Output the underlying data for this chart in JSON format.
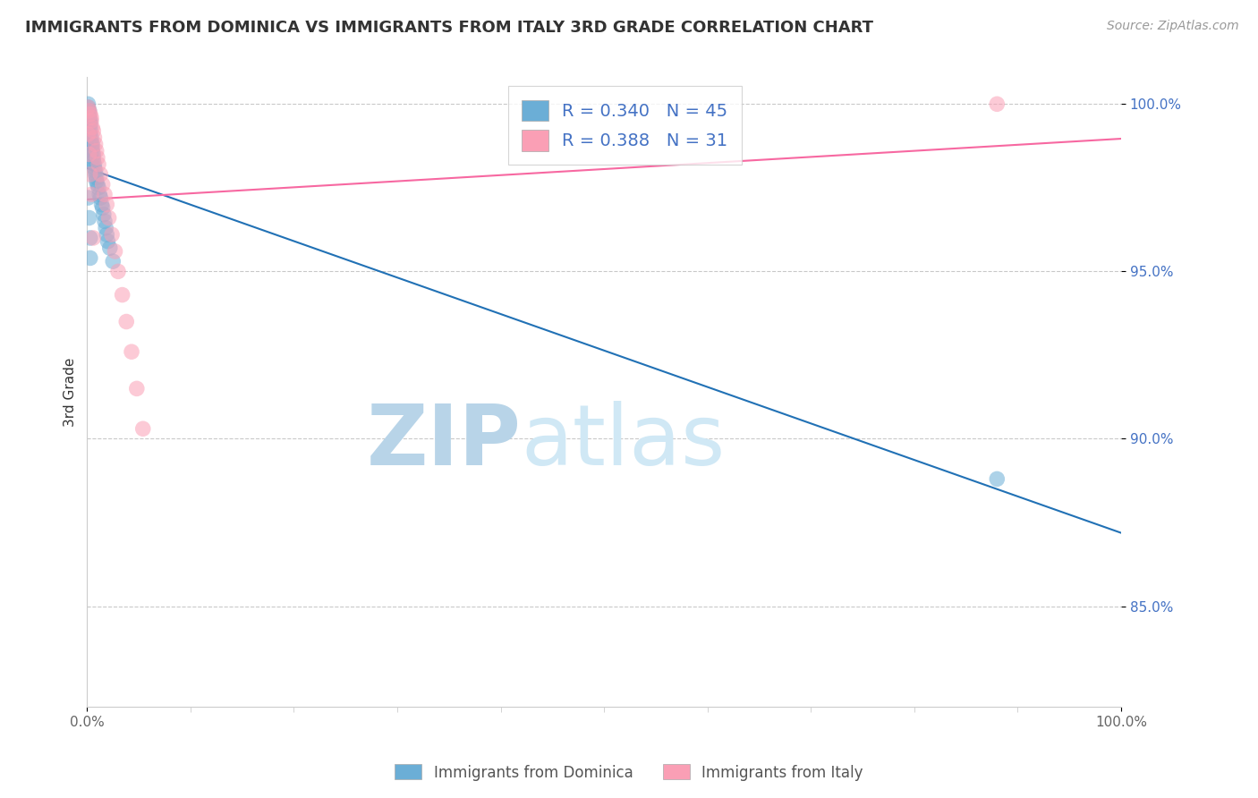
{
  "title": "IMMIGRANTS FROM DOMINICA VS IMMIGRANTS FROM ITALY 3RD GRADE CORRELATION CHART",
  "source": "Source: ZipAtlas.com",
  "ylabel": "3rd Grade",
  "dominica_color": "#6baed6",
  "italy_color": "#fa9fb5",
  "dominica_line_color": "#2171b5",
  "italy_line_color": "#f768a1",
  "dominica_R": 0.34,
  "dominica_N": 45,
  "italy_R": 0.388,
  "italy_N": 31,
  "xlim": [
    0.0,
    1.0
  ],
  "ylim": [
    0.82,
    1.008
  ],
  "yticks": [
    0.85,
    0.9,
    0.95,
    1.0
  ],
  "yticklabels": [
    "85.0%",
    "90.0%",
    "95.0%",
    "100.0%"
  ],
  "dominica_x": [
    0.001,
    0.001,
    0.001,
    0.002,
    0.002,
    0.002,
    0.002,
    0.003,
    0.003,
    0.003,
    0.003,
    0.003,
    0.004,
    0.004,
    0.004,
    0.005,
    0.005,
    0.005,
    0.006,
    0.006,
    0.006,
    0.007,
    0.007,
    0.008,
    0.008,
    0.009,
    0.009,
    0.01,
    0.011,
    0.012,
    0.013,
    0.014,
    0.015,
    0.016,
    0.017,
    0.018,
    0.019,
    0.02,
    0.022,
    0.025,
    0.001,
    0.002,
    0.003,
    0.003,
    0.88
  ],
  "dominica_y": [
    1.0,
    0.999,
    0.998,
    0.998,
    0.997,
    0.996,
    0.995,
    0.995,
    0.994,
    0.993,
    0.992,
    0.991,
    0.99,
    0.989,
    0.988,
    0.988,
    0.987,
    0.986,
    0.985,
    0.984,
    0.983,
    0.982,
    0.981,
    0.98,
    0.979,
    0.978,
    0.977,
    0.976,
    0.975,
    0.973,
    0.972,
    0.97,
    0.969,
    0.967,
    0.965,
    0.963,
    0.961,
    0.959,
    0.957,
    0.953,
    0.972,
    0.966,
    0.96,
    0.954,
    0.888
  ],
  "italy_x": [
    0.001,
    0.002,
    0.003,
    0.004,
    0.004,
    0.005,
    0.006,
    0.007,
    0.008,
    0.009,
    0.01,
    0.011,
    0.013,
    0.015,
    0.017,
    0.019,
    0.021,
    0.024,
    0.027,
    0.03,
    0.034,
    0.038,
    0.043,
    0.048,
    0.054,
    0.001,
    0.002,
    0.003,
    0.004,
    0.006,
    0.88
  ],
  "italy_y": [
    0.999,
    0.998,
    0.997,
    0.996,
    0.995,
    0.993,
    0.992,
    0.99,
    0.988,
    0.986,
    0.984,
    0.982,
    0.979,
    0.976,
    0.973,
    0.97,
    0.966,
    0.961,
    0.956,
    0.95,
    0.943,
    0.935,
    0.926,
    0.915,
    0.903,
    0.991,
    0.985,
    0.979,
    0.973,
    0.96,
    1.0
  ],
  "watermark_zip": "ZIP",
  "watermark_atlas": "atlas",
  "watermark_color": "#d0e8f5",
  "background_color": "#ffffff",
  "grid_color": "#bbbbbb",
  "ytick_color": "#4472c4",
  "tick_color": "#666666"
}
